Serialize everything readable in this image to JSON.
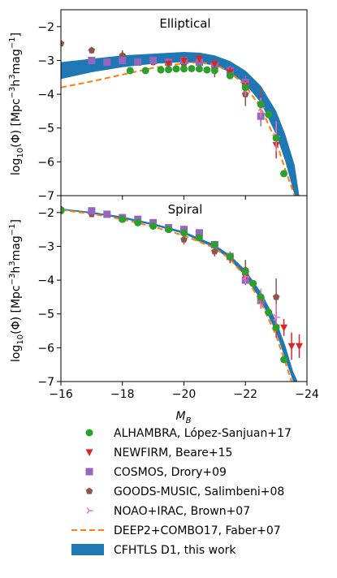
{
  "chart_data": {
    "type": "scatter",
    "xlabel": "M_B",
    "ylabel": "log10(Φ) [Mpc^-3 h^3 mag^-1]",
    "xlim": [
      -16,
      -24
    ],
    "ylim": [
      -7,
      -1.5
    ],
    "x_ticks": [
      "−16",
      "−18",
      "−20",
      "−22",
      "−24"
    ],
    "y_ticks": [
      "−2",
      "−3",
      "−4",
      "−5",
      "−6",
      "−7"
    ],
    "grid": false,
    "legend_placement": "below plot",
    "series_styles": [
      {
        "key": "alhambra",
        "name": "ALHAMBRA, López-Sanjuan+17",
        "marker": "circle",
        "color": "#2ca02c"
      },
      {
        "key": "newfirm",
        "name": "NEWFIRM, Beare+15",
        "marker": "triangle-down",
        "color": "#d62728"
      },
      {
        "key": "cosmos",
        "name": "COSMOS, Drory+09",
        "marker": "square",
        "color": "#9467bd"
      },
      {
        "key": "goods",
        "name": "GOODS-MUSIC, Salimbeni+08",
        "marker": "pentagon",
        "color": "#8c564b"
      },
      {
        "key": "noao",
        "name": "NOAO+IRAC, Brown+07",
        "marker": "tri-right",
        "color": "#e377c2"
      },
      {
        "key": "deep2",
        "name": "DEEP2+COMBO17, Faber+07",
        "marker": "dashed-line",
        "color": "#ff7f0e"
      },
      {
        "key": "cfhtls",
        "name": "CFHTLS D1, this work",
        "marker": "band",
        "color": "#1f77b4"
      }
    ],
    "panels": [
      {
        "title": "Elliptical",
        "cfhtls_band": [
          {
            "x": -16,
            "lo": -3.55,
            "hi": -3.05
          },
          {
            "x": -17,
            "lo": -3.35,
            "hi": -2.95
          },
          {
            "x": -18,
            "lo": -3.2,
            "hi": -2.85
          },
          {
            "x": -19,
            "lo": -3.1,
            "hi": -2.8
          },
          {
            "x": -20,
            "lo": -3.05,
            "hi": -2.75
          },
          {
            "x": -20.5,
            "lo": -3.08,
            "hi": -2.77
          },
          {
            "x": -21,
            "lo": -3.15,
            "hi": -2.85
          },
          {
            "x": -21.5,
            "lo": -3.35,
            "hi": -3.02
          },
          {
            "x": -22,
            "lo": -3.7,
            "hi": -3.3
          },
          {
            "x": -22.5,
            "lo": -4.25,
            "hi": -3.75
          },
          {
            "x": -23,
            "lo": -5.2,
            "hi": -4.5
          },
          {
            "x": -23.3,
            "lo": -6.0,
            "hi": -5.2
          },
          {
            "x": -23.6,
            "lo": -7.0,
            "hi": -6.1
          },
          {
            "x": -23.75,
            "lo": -7.0,
            "hi": -7.0
          }
        ],
        "deep2": {
          "x": [
            -16,
            -17,
            -18,
            -19,
            -20,
            -20.5,
            -21,
            -21.5,
            -22,
            -22.5,
            -23,
            -23.3,
            -23.6
          ],
          "y": [
            -3.8,
            -3.62,
            -3.42,
            -3.22,
            -3.08,
            -3.06,
            -3.12,
            -3.35,
            -3.75,
            -4.4,
            -5.4,
            -6.25,
            -7.0
          ]
        },
        "alhambra": {
          "x": [
            -18.25,
            -18.75,
            -19.25,
            -19.5,
            -19.75,
            -20.0,
            -20.25,
            -20.5,
            -20.75,
            -21.0,
            -21.5,
            -22.0,
            -22.5,
            -22.75,
            -23.0,
            -23.25
          ],
          "y": [
            -3.3,
            -3.3,
            -3.28,
            -3.27,
            -3.25,
            -3.25,
            -3.24,
            -3.25,
            -3.28,
            -3.3,
            -3.45,
            -3.8,
            -4.3,
            -4.6,
            -5.3,
            -6.35
          ]
        },
        "newfirm": {
          "x": [
            -19.5,
            -20.0,
            -20.5,
            -21.0,
            -21.5,
            -22.0,
            -22.5,
            -23.0
          ],
          "y": [
            -3.1,
            -3.0,
            -2.95,
            -3.1,
            -3.35,
            -3.75,
            -4.3,
            -5.5
          ],
          "err": [
            0.1,
            0.1,
            0.1,
            0.1,
            0.15,
            0.15,
            0.25,
            0.4
          ]
        },
        "cosmos": {
          "x": [
            -17.0,
            -17.5,
            -18.0,
            -18.5,
            -19.0,
            -19.5,
            -20.0,
            -20.5,
            -21.0,
            -21.5,
            -22.0,
            -22.5
          ],
          "y": [
            -3.0,
            -3.05,
            -3.0,
            -3.05,
            -3.0,
            -3.05,
            -3.0,
            -3.05,
            -3.15,
            -3.3,
            -3.65,
            -4.65
          ],
          "err": [
            0.1,
            0.1,
            0.1,
            0.1,
            0.1,
            0.1,
            0.1,
            0.1,
            0.15,
            0.15,
            0.2,
            0.3
          ]
        },
        "goods": {
          "x": [
            -16,
            -17,
            -18,
            -19,
            -20,
            -21,
            -22,
            -22.5
          ],
          "y": [
            -2.5,
            -2.7,
            -2.85,
            -3.05,
            -3.1,
            -3.25,
            -4.0,
            -4.3
          ],
          "err": [
            0.05,
            0.1,
            0.15,
            0.1,
            0.15,
            0.25,
            0.35,
            0.5
          ]
        },
        "noao": {
          "x": [
            -22.0,
            -22.5,
            -23.0
          ],
          "y": [
            -3.85,
            -4.4,
            -5.25
          ],
          "err": [
            0.2,
            0.3,
            0.45
          ]
        }
      },
      {
        "title": "Spiral",
        "cfhtls_band": [
          {
            "x": -16,
            "lo": -1.92,
            "hi": -1.88
          },
          {
            "x": -17,
            "lo": -2.03,
            "hi": -1.98
          },
          {
            "x": -18,
            "lo": -2.18,
            "hi": -2.12
          },
          {
            "x": -19,
            "lo": -2.38,
            "hi": -2.32
          },
          {
            "x": -20,
            "lo": -2.63,
            "hi": -2.56
          },
          {
            "x": -21,
            "lo": -3.05,
            "hi": -2.95
          },
          {
            "x": -21.5,
            "lo": -3.4,
            "hi": -3.26
          },
          {
            "x": -22,
            "lo": -3.88,
            "hi": -3.7
          },
          {
            "x": -22.5,
            "lo": -4.6,
            "hi": -4.35
          },
          {
            "x": -23,
            "lo": -5.55,
            "hi": -5.2
          },
          {
            "x": -23.3,
            "lo": -6.35,
            "hi": -5.95
          },
          {
            "x": -23.55,
            "lo": -7.0,
            "hi": -6.7
          },
          {
            "x": -23.7,
            "lo": -7.0,
            "hi": -7.0
          }
        ],
        "deep2": {
          "x": [
            -16,
            -17,
            -18,
            -19,
            -20,
            -21,
            -21.5,
            -22,
            -22.5,
            -23,
            -23.3,
            -23.5
          ],
          "y": [
            -1.92,
            -2.04,
            -2.2,
            -2.42,
            -2.68,
            -3.05,
            -3.38,
            -3.9,
            -4.65,
            -5.65,
            -6.45,
            -7.0
          ]
        },
        "alhambra": {
          "x": [
            -16.0,
            -18.0,
            -18.5,
            -19.0,
            -19.5,
            -20.0,
            -20.5,
            -21.0,
            -21.5,
            -22.0,
            -22.25,
            -22.5,
            -22.75,
            -23.0,
            -23.25
          ],
          "y": [
            -1.95,
            -2.2,
            -2.3,
            -2.4,
            -2.5,
            -2.6,
            -2.75,
            -2.95,
            -3.3,
            -3.75,
            -4.1,
            -4.5,
            -4.95,
            -5.4,
            -6.35
          ]
        },
        "newfirm": {
          "x": [
            -20.5,
            -21.0,
            -21.5,
            -22.0,
            -22.5,
            -23.0,
            -23.25,
            -23.5,
            -23.75
          ],
          "y": [
            -2.75,
            -2.95,
            -3.35,
            -3.9,
            -4.6,
            -5.4,
            -5.4,
            -5.95,
            -5.95
          ],
          "err": [
            0.1,
            0.1,
            0.15,
            0.2,
            0.25,
            0.3,
            0.25,
            0.4,
            0.35
          ]
        },
        "cosmos": {
          "x": [
            -17.0,
            -17.5,
            -18.0,
            -18.5,
            -19.0,
            -19.5,
            -20.0,
            -20.5,
            -21.0,
            -21.5,
            -22.0,
            -22.5
          ],
          "y": [
            -1.95,
            -2.05,
            -2.15,
            -2.2,
            -2.3,
            -2.45,
            -2.5,
            -2.6,
            -2.95,
            -3.3,
            -4.0,
            -4.6
          ],
          "err": [
            0.1,
            0.1,
            0.1,
            0.1,
            0.1,
            0.1,
            0.1,
            0.1,
            0.1,
            0.15,
            0.15,
            0.25
          ]
        },
        "goods": {
          "x": [
            -16,
            -17,
            -18,
            -19,
            -20,
            -21,
            -22,
            -23
          ],
          "y": [
            -1.9,
            -2.05,
            -2.2,
            -2.4,
            -2.8,
            -3.15,
            -3.7,
            -4.5
          ],
          "err": [
            0.05,
            0.08,
            0.1,
            0.1,
            0.15,
            0.15,
            0.3,
            0.55
          ]
        },
        "noao": {
          "x": [
            -22.0,
            -22.5,
            -23.0
          ],
          "y": [
            -3.9,
            -4.55,
            -5.1
          ],
          "err": [
            0.2,
            0.3,
            0.4
          ]
        }
      }
    ]
  },
  "labels": {
    "xlabel_main": "M",
    "xlabel_sub": "B",
    "ylabel_a": "log",
    "ylabel_sub": "10",
    "ylabel_b": "(Φ) [Mpc",
    "ylabel_sup1": "−3",
    "ylabel_c": "h",
    "ylabel_sup2": "3",
    "ylabel_d": "mag",
    "ylabel_sup3": "−1",
    "ylabel_e": "]"
  }
}
